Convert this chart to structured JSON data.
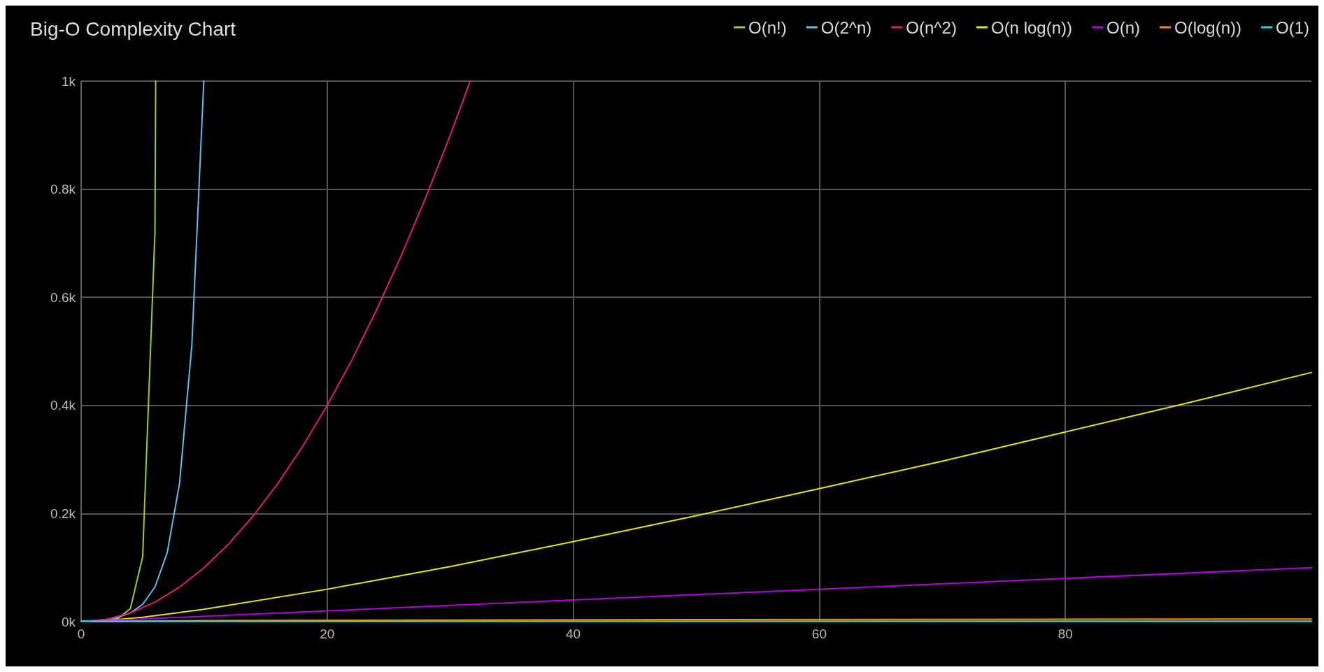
{
  "chart_data": {
    "type": "line",
    "title": "Big-O Complexity Chart",
    "xlim": [
      0,
      100
    ],
    "xticks": [
      0,
      20,
      40,
      60,
      80
    ],
    "ylim": [
      0,
      1000
    ],
    "yticks": [
      {
        "value": 0,
        "label": "0k"
      },
      {
        "value": 200,
        "label": "0.2k"
      },
      {
        "value": 400,
        "label": "0.4k"
      },
      {
        "value": 600,
        "label": "0.6k"
      },
      {
        "value": 800,
        "label": "0.8k"
      },
      {
        "value": 1000,
        "label": "1k"
      }
    ],
    "grid": true,
    "legend": "top right",
    "marker": "none",
    "line_style": "solid",
    "series": [
      {
        "name": "O(n!)",
        "color": "#9acd32",
        "x": [
          0,
          1,
          2,
          3,
          4,
          5,
          6,
          6.06
        ],
        "values": [
          1,
          1,
          2,
          6,
          24,
          120,
          720,
          1000
        ]
      },
      {
        "name": "O(2^n)",
        "color": "#5bc0eb",
        "x": [
          0,
          1,
          2,
          3,
          4,
          5,
          6,
          7,
          8,
          9,
          9.97
        ],
        "values": [
          1,
          2,
          4,
          8,
          16,
          32,
          64,
          128,
          256,
          512,
          1000
        ]
      },
      {
        "name": "O(n^2)",
        "color": "#e0197d",
        "x": [
          0,
          2,
          4,
          6,
          8,
          10,
          12,
          14,
          16,
          18,
          20,
          22,
          24,
          26,
          28,
          30,
          31,
          31.62
        ],
        "values": [
          0,
          4,
          16,
          36,
          64,
          100,
          144,
          196,
          256,
          324,
          400,
          484,
          576,
          676,
          784,
          900,
          961,
          1000
        ]
      },
      {
        "name": "O(n log(n))",
        "color": "#e6e600",
        "x": [
          1,
          5,
          10,
          20,
          30,
          40,
          50,
          60,
          70,
          80,
          90,
          100
        ],
        "values": [
          0,
          8,
          23,
          60,
          102,
          148,
          196,
          246,
          297,
          351,
          405,
          461
        ]
      },
      {
        "name": "O(n)",
        "color": "#b000e0",
        "x": [
          0,
          100
        ],
        "values": [
          0,
          100
        ]
      },
      {
        "name": "O(log(n))",
        "color": "#ff8c00",
        "x": [
          1,
          10,
          50,
          100
        ],
        "values": [
          0,
          2,
          4,
          5
        ]
      },
      {
        "name": "O(1)",
        "color": "#00e5e5",
        "x": [
          0,
          100
        ],
        "values": [
          1,
          1
        ]
      }
    ]
  }
}
